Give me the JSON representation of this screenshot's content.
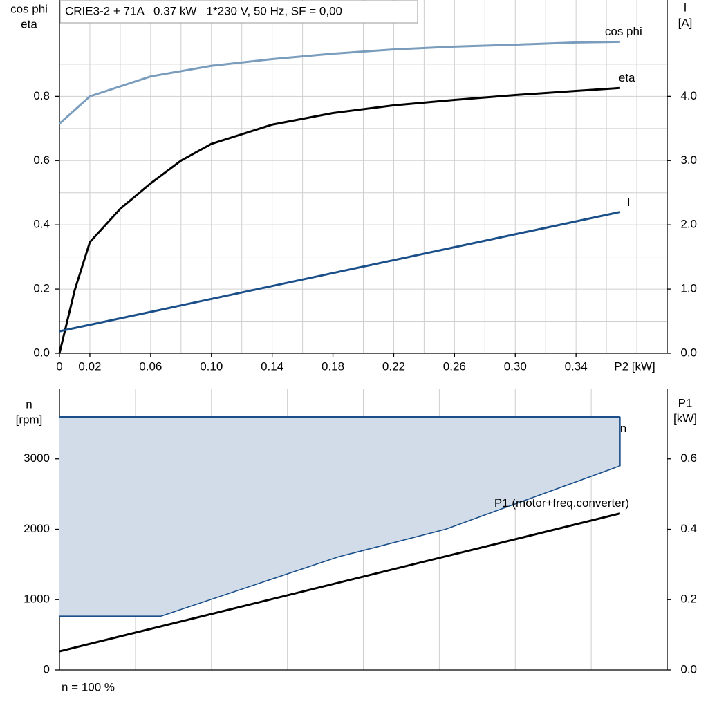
{
  "chart_data": [
    {
      "type": "line",
      "title": "CRIE3-2 + 71A   0.37 kW   1*230 V, 50 Hz, SF = 0,00",
      "ylabel": [
        "cos phi",
        "eta"
      ],
      "y2label": [
        "I",
        "[A]"
      ],
      "xlabel": "P2 [kW]",
      "xlim": [
        0,
        0.4
      ],
      "ylim": [
        0,
        1.1
      ],
      "y2lim": [
        0,
        5.5
      ],
      "xticks": [
        0,
        0.02,
        0.06,
        {
          "value": 0.1,
          "label": "0.10"
        },
        0.14,
        0.18,
        0.22,
        0.26,
        {
          "value": 0.3,
          "label": "0.30"
        },
        0.34
      ],
      "yticks": [
        {
          "value": 0,
          "label": "0.0"
        },
        0.2,
        0.4,
        0.6,
        0.8
      ],
      "y2ticks": [
        {
          "value": 0,
          "label": "0.0"
        },
        {
          "value": 1,
          "label": "1.0"
        },
        {
          "value": 2,
          "label": "2.0"
        },
        {
          "value": 3,
          "label": "3.0"
        },
        {
          "value": 4,
          "label": "4.0"
        }
      ],
      "grid": {
        "x_step": 0.02,
        "y_step": 0.1
      },
      "series": [
        {
          "name": "cos phi",
          "color": "#7b9dbd",
          "x": [
            0,
            0.02,
            0.06,
            0.1,
            0.14,
            0.18,
            0.22,
            0.26,
            0.3,
            0.34,
            0.369
          ],
          "values": [
            0.715,
            0.8,
            0.862,
            0.895,
            0.916,
            0.933,
            0.946,
            0.955,
            0.961,
            0.968,
            0.97
          ]
        },
        {
          "name": "eta",
          "color": "#000000",
          "x": [
            0,
            0.01,
            0.02,
            0.04,
            0.06,
            0.08,
            0.1,
            0.14,
            0.18,
            0.22,
            0.26,
            0.3,
            0.34,
            0.369
          ],
          "values": [
            0,
            0.196,
            0.346,
            0.45,
            0.529,
            0.6,
            0.652,
            0.712,
            0.748,
            0.772,
            0.789,
            0.804,
            0.817,
            0.826
          ]
        },
        {
          "name": "I",
          "color": "#1a4f8a",
          "axis": "y2",
          "x": [
            0,
            0.369
          ],
          "values": [
            0.343,
            2.2
          ]
        }
      ]
    },
    {
      "type": "area",
      "ylabel": [
        "n",
        "[rpm]"
      ],
      "y2label": [
        "P1",
        "[kW]"
      ],
      "note": "n = 100 %",
      "xlim": [
        0,
        0.4
      ],
      "ylim": [
        0,
        4000
      ],
      "y2lim": [
        0,
        0.8
      ],
      "yticks": [
        0,
        1000,
        2000,
        3000
      ],
      "y2ticks": [
        {
          "value": 0,
          "label": "0.0"
        },
        0.2,
        0.4,
        0.6
      ],
      "grid": {
        "x_step": 0.05
      },
      "series": [
        {
          "name": "n",
          "color": "#1a4f8a",
          "x": [
            0,
            0.369
          ],
          "values": [
            3600,
            3600
          ],
          "band": {
            "x": [
              0,
              0.0668,
              0.1836,
              0.2541,
              0.369
            ],
            "lower": [
              765,
              765,
              1608,
              2000,
              2902
            ],
            "color": "#d1dce8"
          }
        },
        {
          "name": "P1 (motor+freq.converter)",
          "color": "#000000",
          "axis": "y2",
          "x": [
            0,
            0.369
          ],
          "values": [
            0.053,
            0.445
          ]
        }
      ]
    }
  ]
}
